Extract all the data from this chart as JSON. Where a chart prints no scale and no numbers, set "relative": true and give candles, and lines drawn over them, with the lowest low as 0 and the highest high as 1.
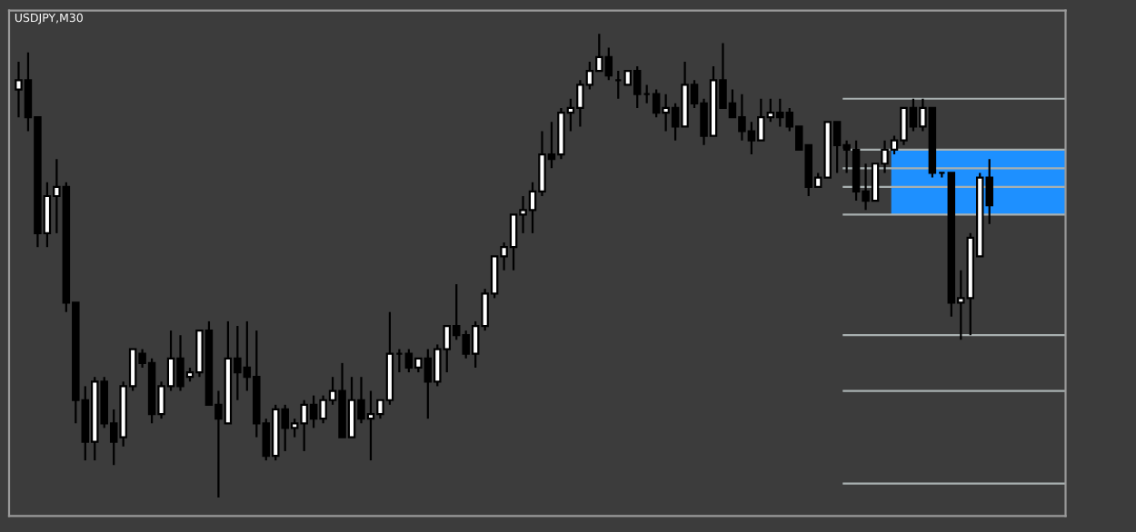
{
  "chart_data": {
    "type": "candlestick",
    "title": "USDJPY,M30",
    "relative": true,
    "categories": [
      null,
      null,
      null,
      null,
      null,
      null,
      null,
      null,
      null,
      null,
      null,
      null,
      null,
      null,
      null,
      null,
      null,
      null,
      null,
      null,
      null,
      null,
      null,
      null,
      null,
      null,
      null,
      null,
      null,
      null,
      null,
      null,
      null,
      null,
      null,
      null,
      null,
      null,
      null,
      null,
      null,
      null,
      null,
      null,
      null,
      null,
      null,
      null,
      null,
      null,
      null,
      null,
      null,
      null,
      null,
      null,
      null,
      null,
      null,
      null,
      null,
      null,
      null,
      null,
      null,
      null,
      null,
      null,
      null,
      null,
      null,
      null,
      null,
      null,
      null,
      null,
      null,
      null,
      null,
      null,
      null,
      null,
      null,
      null,
      null,
      null,
      null,
      null,
      null,
      null,
      null,
      null,
      null,
      null,
      null,
      null,
      null,
      null,
      null,
      null,
      null,
      null,
      null
    ],
    "ohlc": [
      [
        0.88,
        0.94,
        0.82,
        0.9
      ],
      [
        0.9,
        0.96,
        0.79,
        0.82
      ],
      [
        0.82,
        0.82,
        0.54,
        0.57
      ],
      [
        0.57,
        0.68,
        0.54,
        0.65
      ],
      [
        0.65,
        0.73,
        0.57,
        0.67
      ],
      [
        0.67,
        0.68,
        0.4,
        0.42
      ],
      [
        0.42,
        0.42,
        0.16,
        0.21
      ],
      [
        0.21,
        0.24,
        0.08,
        0.12
      ],
      [
        0.12,
        0.26,
        0.08,
        0.25
      ],
      [
        0.25,
        0.26,
        0.15,
        0.16
      ],
      [
        0.16,
        0.19,
        0.07,
        0.12
      ],
      [
        0.13,
        0.25,
        0.11,
        0.24
      ],
      [
        0.24,
        0.32,
        0.23,
        0.32
      ],
      [
        0.31,
        0.32,
        0.28,
        0.29
      ],
      [
        0.29,
        0.3,
        0.16,
        0.18
      ],
      [
        0.18,
        0.25,
        0.17,
        0.24
      ],
      [
        0.24,
        0.36,
        0.23,
        0.3
      ],
      [
        0.3,
        0.35,
        0.23,
        0.24
      ],
      [
        0.26,
        0.28,
        0.25,
        0.27
      ],
      [
        0.27,
        0.36,
        0.26,
        0.36
      ],
      [
        0.36,
        0.38,
        0.2,
        0.2
      ],
      [
        0.2,
        0.23,
        0,
        0.17
      ],
      [
        0.16,
        0.38,
        0.16,
        0.3
      ],
      [
        0.3,
        0.37,
        0.21,
        0.27
      ],
      [
        0.28,
        0.38,
        0.23,
        0.26
      ],
      [
        0.26,
        0.36,
        0.13,
        0.16
      ],
      [
        0.16,
        0.17,
        0.08,
        0.09
      ],
      [
        0.09,
        0.2,
        0.08,
        0.19
      ],
      [
        0.19,
        0.2,
        0.1,
        0.15
      ],
      [
        0.15,
        0.17,
        0.13,
        0.16
      ],
      [
        0.16,
        0.21,
        0.1,
        0.2
      ],
      [
        0.2,
        0.22,
        0.15,
        0.17
      ],
      [
        0.17,
        0.22,
        0.16,
        0.21
      ],
      [
        0.21,
        0.26,
        0.2,
        0.23
      ],
      [
        0.23,
        0.29,
        0.13,
        0.13
      ],
      [
        0.13,
        0.26,
        0.13,
        0.21
      ],
      [
        0.21,
        0.26,
        0.16,
        0.17
      ],
      [
        0.17,
        0.23,
        0.08,
        0.18
      ],
      [
        0.18,
        0.21,
        0.17,
        0.21
      ],
      [
        0.21,
        0.4,
        0.2,
        0.31
      ],
      [
        0.31,
        0.32,
        0.27,
        0.31
      ],
      [
        0.31,
        0.32,
        0.27,
        0.28
      ],
      [
        0.28,
        0.3,
        0.27,
        0.3
      ],
      [
        0.3,
        0.32,
        0.17,
        0.25
      ],
      [
        0.25,
        0.33,
        0.24,
        0.32
      ],
      [
        0.32,
        0.37,
        0.27,
        0.37
      ],
      [
        0.37,
        0.46,
        0.34,
        0.35
      ],
      [
        0.35,
        0.36,
        0.3,
        0.31
      ],
      [
        0.31,
        0.38,
        0.28,
        0.37
      ],
      [
        0.37,
        0.45,
        0.36,
        0.44
      ],
      [
        0.44,
        0.52,
        0.43,
        0.52
      ],
      [
        0.52,
        0.55,
        0.49,
        0.54
      ],
      [
        0.54,
        0.61,
        0.49,
        0.61
      ],
      [
        0.61,
        0.65,
        0.57,
        0.62
      ],
      [
        0.62,
        0.68,
        0.57,
        0.66
      ],
      [
        0.66,
        0.79,
        0.65,
        0.74
      ],
      [
        0.74,
        0.81,
        0.71,
        0.73
      ],
      [
        0.74,
        0.84,
        0.73,
        0.83
      ],
      [
        0.83,
        0.86,
        0.79,
        0.84
      ],
      [
        0.84,
        0.9,
        0.8,
        0.89
      ],
      [
        0.89,
        0.94,
        0.88,
        0.92
      ],
      [
        0.92,
        1.0,
        0.92,
        0.95
      ],
      [
        0.95,
        0.97,
        0.9,
        0.91
      ],
      [
        0.9,
        0.92,
        0.86,
        0.9
      ],
      [
        0.89,
        0.92,
        0.89,
        0.92
      ],
      [
        0.92,
        0.93,
        0.84,
        0.87
      ],
      [
        0.87,
        0.89,
        0.85,
        0.87
      ],
      [
        0.87,
        0.88,
        0.82,
        0.83
      ],
      [
        0.83,
        0.87,
        0.79,
        0.84
      ],
      [
        0.84,
        0.85,
        0.77,
        0.8
      ],
      [
        0.8,
        0.94,
        0.8,
        0.89
      ],
      [
        0.89,
        0.9,
        0.84,
        0.85
      ],
      [
        0.85,
        0.86,
        0.76,
        0.78
      ],
      [
        0.78,
        0.93,
        0.78,
        0.9
      ],
      [
        0.9,
        0.98,
        0.84,
        0.84
      ],
      [
        0.85,
        0.88,
        0.82,
        0.82
      ],
      [
        0.82,
        0.87,
        0.77,
        0.79
      ],
      [
        0.79,
        0.81,
        0.74,
        0.77
      ],
      [
        0.77,
        0.86,
        0.77,
        0.82
      ],
      [
        0.82,
        0.86,
        0.81,
        0.83
      ],
      [
        0.83,
        0.86,
        0.8,
        0.82
      ],
      [
        0.83,
        0.84,
        0.79,
        0.8
      ],
      [
        0.8,
        0.8,
        0.75,
        0.75
      ],
      [
        0.76,
        0.76,
        0.65,
        0.67
      ],
      [
        0.67,
        0.7,
        0.67,
        0.69
      ],
      [
        0.69,
        0.81,
        0.69,
        0.81
      ],
      [
        0.81,
        0.81,
        0.7,
        0.76
      ],
      [
        0.76,
        0.77,
        0.7,
        0.75
      ],
      [
        0.75,
        0.77,
        0.64,
        0.66
      ],
      [
        0.66,
        0.72,
        0.62,
        0.64
      ],
      [
        0.64,
        0.72,
        0.64,
        0.72
      ],
      [
        0.72,
        0.77,
        0.7,
        0.75
      ],
      [
        0.75,
        0.78,
        0.74,
        0.77
      ],
      [
        0.77,
        0.84,
        0.76,
        0.84
      ],
      [
        0.84,
        0.86,
        0.79,
        0.8
      ],
      [
        0.8,
        0.86,
        0.79,
        0.84
      ],
      [
        0.84,
        0.84,
        0.69,
        0.7
      ],
      [
        0.7,
        0.7,
        0.69,
        0.7
      ],
      [
        0.7,
        0.7,
        0.39,
        0.42
      ],
      [
        0.42,
        0.49,
        0.34,
        0.43
      ],
      [
        0.43,
        0.57,
        0.35,
        0.56
      ],
      [
        0.52,
        0.7,
        0.52,
        0.69
      ],
      [
        0.69,
        0.73,
        0.59,
        0.63
      ]
    ],
    "ref_lines": [
      {
        "axis": "y",
        "value": 0.86,
        "color": "#a8b0b0"
      },
      {
        "axis": "y",
        "value": 0.75,
        "color": "#a8b0b0"
      },
      {
        "axis": "y",
        "value": 0.71,
        "color": "#a8b0b0"
      },
      {
        "axis": "y",
        "value": 0.67,
        "color": "#a8b0b0"
      },
      {
        "axis": "y",
        "value": 0.61,
        "color": "#a8b0b0"
      },
      {
        "axis": "y",
        "value": 0.35,
        "color": "#a8b0b0"
      },
      {
        "axis": "y",
        "value": 0.23,
        "color": "#a8b0b0"
      },
      {
        "axis": "y",
        "value": 0.03,
        "color": "#a8b0b0"
      }
    ],
    "bands": [
      {
        "axis": "y",
        "from": 0.61,
        "to": 0.75,
        "color": "#1e90ff"
      }
    ],
    "grid": false,
    "legend": false
  }
}
